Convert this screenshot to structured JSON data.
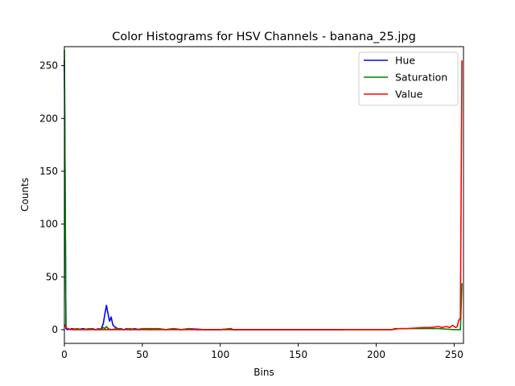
{
  "chart_data": {
    "type": "line",
    "title": "Color Histograms for HSV Channels - banana_25.jpg",
    "xlabel": "Bins",
    "ylabel": "Counts",
    "xlim": [
      0,
      256
    ],
    "ylim": [
      -13,
      268
    ],
    "xticks": [
      0,
      50,
      100,
      150,
      200,
      250
    ],
    "yticks": [
      0,
      50,
      100,
      150,
      200,
      250
    ],
    "grid": false,
    "legend": "top-right",
    "series": [
      {
        "name": "Hue",
        "color": "#0000ff",
        "points": [
          [
            0,
            255
          ],
          [
            1,
            1
          ],
          [
            2,
            0
          ],
          [
            5,
            1
          ],
          [
            8,
            0
          ],
          [
            12,
            1
          ],
          [
            15,
            0
          ],
          [
            18,
            1
          ],
          [
            20,
            0
          ],
          [
            22,
            1
          ],
          [
            23,
            0
          ],
          [
            24,
            2
          ],
          [
            25,
            6
          ],
          [
            26,
            15
          ],
          [
            27,
            23
          ],
          [
            28,
            15
          ],
          [
            29,
            8
          ],
          [
            30,
            12
          ],
          [
            31,
            5
          ],
          [
            32,
            3
          ],
          [
            33,
            2
          ],
          [
            34,
            1
          ],
          [
            36,
            1
          ],
          [
            38,
            0
          ],
          [
            40,
            1
          ],
          [
            42,
            0
          ],
          [
            45,
            1
          ],
          [
            48,
            0
          ],
          [
            52,
            1
          ],
          [
            55,
            0
          ],
          [
            60,
            1
          ],
          [
            65,
            0
          ],
          [
            70,
            1
          ],
          [
            75,
            0
          ],
          [
            80,
            1
          ],
          [
            90,
            0
          ],
          [
            100,
            0
          ],
          [
            107,
            1
          ],
          [
            108,
            0
          ],
          [
            120,
            0
          ],
          [
            140,
            0
          ],
          [
            160,
            0
          ],
          [
            179,
            0
          ]
        ]
      },
      {
        "name": "Saturation",
        "color": "#008000",
        "points": [
          [
            0,
            265
          ],
          [
            1,
            2
          ],
          [
            2,
            1
          ],
          [
            4,
            0
          ],
          [
            8,
            1
          ],
          [
            12,
            0
          ],
          [
            16,
            1
          ],
          [
            20,
            0
          ],
          [
            24,
            1
          ],
          [
            25,
            2
          ],
          [
            26,
            1
          ],
          [
            27,
            3
          ],
          [
            28,
            1
          ],
          [
            30,
            0
          ],
          [
            34,
            1
          ],
          [
            38,
            0
          ],
          [
            42,
            1
          ],
          [
            46,
            0
          ],
          [
            50,
            1
          ],
          [
            55,
            1
          ],
          [
            60,
            1
          ],
          [
            65,
            0
          ],
          [
            70,
            1
          ],
          [
            75,
            0
          ],
          [
            80,
            1
          ],
          [
            85,
            0
          ],
          [
            90,
            0
          ],
          [
            100,
            0
          ],
          [
            107,
            1
          ],
          [
            108,
            0
          ],
          [
            120,
            0
          ],
          [
            140,
            0
          ],
          [
            160,
            0
          ],
          [
            180,
            0
          ],
          [
            200,
            0
          ],
          [
            210,
            0
          ],
          [
            212,
            1
          ],
          [
            220,
            1
          ],
          [
            230,
            1
          ],
          [
            240,
            1
          ],
          [
            250,
            0
          ],
          [
            254,
            0
          ],
          [
            255,
            44
          ]
        ]
      },
      {
        "name": "Value",
        "color": "#ff0000",
        "points": [
          [
            0,
            5
          ],
          [
            1,
            2
          ],
          [
            2,
            1
          ],
          [
            5,
            0
          ],
          [
            10,
            0
          ],
          [
            20,
            0
          ],
          [
            30,
            0
          ],
          [
            40,
            0
          ],
          [
            50,
            0
          ],
          [
            60,
            0
          ],
          [
            80,
            0
          ],
          [
            100,
            0
          ],
          [
            120,
            0
          ],
          [
            140,
            0
          ],
          [
            160,
            0
          ],
          [
            180,
            0
          ],
          [
            200,
            0
          ],
          [
            210,
            0
          ],
          [
            215,
            1
          ],
          [
            220,
            1
          ],
          [
            230,
            2
          ],
          [
            235,
            2
          ],
          [
            240,
            3
          ],
          [
            242,
            2
          ],
          [
            245,
            3
          ],
          [
            247,
            2
          ],
          [
            249,
            4
          ],
          [
            250,
            3
          ],
          [
            251,
            2
          ],
          [
            252,
            3
          ],
          [
            253,
            9
          ],
          [
            254,
            11
          ],
          [
            255,
            255
          ]
        ]
      }
    ]
  }
}
